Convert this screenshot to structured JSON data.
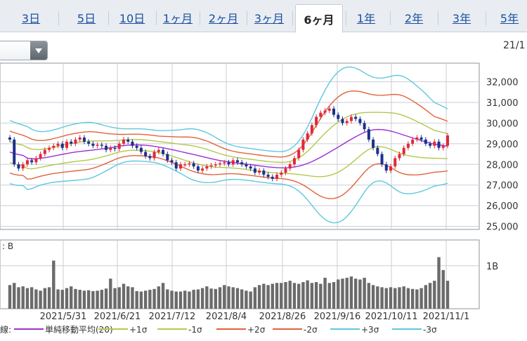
{
  "tabs": [
    {
      "label": "3日",
      "active": false
    },
    {
      "label": "5日",
      "active": false
    },
    {
      "label": "10日",
      "active": false
    },
    {
      "label": "1ヶ月",
      "active": false
    },
    {
      "label": "2ヶ月",
      "active": false
    },
    {
      "label": "3ヶ月",
      "active": false
    },
    {
      "label": "6ヶ月",
      "active": true
    },
    {
      "label": "1年",
      "active": false
    },
    {
      "label": "2年",
      "active": false
    },
    {
      "label": "3年",
      "active": false
    },
    {
      "label": "5年",
      "active": false
    }
  ],
  "header": {
    "date_fragment": "21/1"
  },
  "volume_label": ": B",
  "chart_data": {
    "type": "candlestick",
    "x_labels": [
      "2021/5/31",
      "2021/6/21",
      "2021/7/12",
      "2021/8/4",
      "2021/8/26",
      "2021/9/16",
      "2021/10/11",
      "2021/11/1"
    ],
    "price_ticks": [
      32000,
      31000,
      30000,
      29000,
      28000,
      27000,
      26000,
      25000
    ],
    "price_tick_labels": [
      "32,000",
      "31,000",
      "30,000",
      "29,000",
      "28,000",
      "27,000",
      "26,000",
      "25,000"
    ],
    "price_ylim": [
      24850,
      32900
    ],
    "volume_ticks": [
      {
        "value": 1.0,
        "label": "1B"
      }
    ],
    "volume_ylim": [
      0,
      1.6
    ],
    "closes": [
      29200,
      28000,
      27800,
      28000,
      28200,
      28100,
      28300,
      28500,
      28700,
      28800,
      28900,
      29000,
      28800,
      29100,
      29000,
      29200,
      29300,
      29100,
      29000,
      28900,
      28950,
      28900,
      28700,
      28800,
      28750,
      29000,
      29200,
      29100,
      28900,
      28800,
      28600,
      28400,
      28300,
      28600,
      28700,
      28500,
      28200,
      28100,
      27800,
      28000,
      28000,
      28050,
      27900,
      27700,
      27800,
      27900,
      27950,
      28000,
      28050,
      28100,
      28000,
      28200,
      28100,
      28000,
      27900,
      27800,
      27600,
      27700,
      27500,
      27400,
      27300,
      27500,
      27600,
      27800,
      28000,
      28300,
      28700,
      29200,
      29500,
      29900,
      30300,
      30500,
      30600,
      30700,
      30400,
      30200,
      30000,
      30100,
      30300,
      30200,
      30000,
      29700,
      29200,
      28800,
      28500,
      28000,
      27700,
      27900,
      28300,
      28500,
      28800,
      29000,
      29200,
      29300,
      29200,
      29000,
      28900,
      29100,
      28800,
      28900,
      29400
    ],
    "volumes": [
      0.55,
      0.6,
      0.5,
      0.52,
      0.48,
      0.5,
      0.45,
      0.42,
      0.48,
      0.5,
      1.12,
      0.45,
      0.44,
      0.48,
      0.52,
      0.46,
      0.44,
      0.42,
      0.43,
      0.41,
      0.42,
      0.44,
      0.47,
      0.7,
      0.48,
      0.5,
      0.58,
      0.52,
      0.5,
      0.41,
      0.4,
      0.42,
      0.44,
      0.46,
      0.52,
      0.6,
      0.45,
      0.42,
      0.4,
      0.4,
      0.42,
      0.4,
      0.44,
      0.45,
      0.48,
      0.52,
      0.47,
      0.46,
      0.5,
      0.55,
      0.52,
      0.5,
      0.48,
      0.45,
      0.42,
      0.4,
      0.5,
      0.55,
      0.58,
      0.55,
      0.58,
      0.6,
      0.6,
      0.62,
      0.65,
      0.6,
      0.58,
      0.62,
      0.66,
      0.6,
      0.62,
      0.58,
      0.72,
      0.6,
      0.62,
      0.68,
      0.7,
      0.72,
      0.75,
      0.7,
      0.68,
      0.72,
      0.6,
      0.55,
      0.52,
      0.5,
      0.48,
      0.5,
      0.48,
      0.5,
      0.52,
      0.48,
      0.46,
      0.45,
      0.48,
      0.55,
      0.6,
      0.65,
      1.2,
      0.9,
      0.65
    ],
    "legend": [
      {
        "label": "単純移動平均(20)",
        "color": "#9b2fd1"
      },
      {
        "label": "+1σ",
        "color": "#b3c84a"
      },
      {
        "label": "-1σ",
        "color": "#b3c84a"
      },
      {
        "label": "+2σ",
        "color": "#e0633d"
      },
      {
        "label": "-2σ",
        "color": "#e0633d"
      },
      {
        "label": "+3σ",
        "color": "#5ec8de"
      },
      {
        "label": "-3σ",
        "color": "#5ec8de"
      }
    ],
    "legend_prefix": "線:",
    "colors": {
      "up": "#e0283a",
      "down": "#1d2f8e",
      "volume": "#6b6b6b",
      "grid": "#c9ced6"
    }
  }
}
